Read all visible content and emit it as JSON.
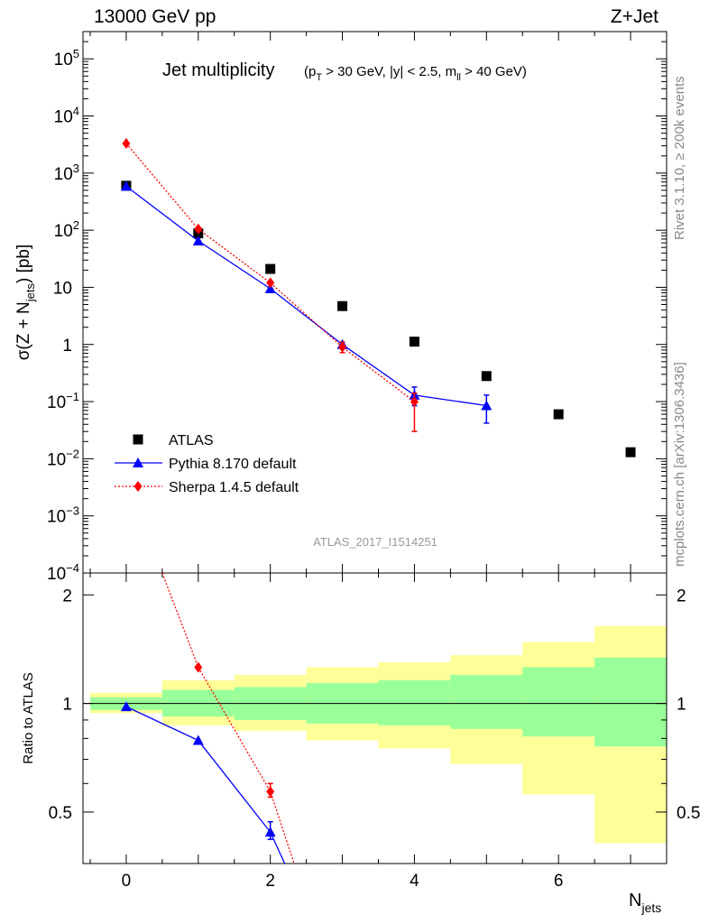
{
  "header": {
    "left": "13000 GeV pp",
    "right": "Z+Jet"
  },
  "sidebar": {
    "rivet": "Rivet 3.1.10, ≥ 200k events",
    "mcplots": "mcplots.cern.ch [arXiv:1306.3436]"
  },
  "plot": {
    "title_main": "Jet multiplicity",
    "title_cuts": "(p_T > 30 GeV, |y| < 2.5, m_ll > 40 GeV)",
    "watermark": "ATLAS_2017_I1514251",
    "xlabel": "N_jets",
    "ylabel_top": "σ(Z + N_jets) [pb]",
    "ylabel_bottom": "Ratio to ATLAS"
  },
  "legend": [
    {
      "label": "ATLAS",
      "color": "#000000",
      "marker": "square"
    },
    {
      "label": "Pythia 8.170 default",
      "color": "#0000ff",
      "marker": "triangle"
    },
    {
      "label": "Sherpa 1.4.5 default",
      "color": "#ff0000",
      "marker": "diamond"
    }
  ],
  "chart_data": [
    {
      "type": "scatter",
      "panel": "main",
      "x": [
        0,
        1,
        2,
        3,
        4,
        5,
        6,
        7
      ],
      "series": [
        {
          "name": "ATLAS",
          "color": "#000000",
          "marker": "square",
          "values": [
            600,
            88,
            21,
            4.7,
            1.12,
            0.28,
            0.06,
            0.013
          ]
        },
        {
          "name": "Pythia 8.170 default",
          "color": "#0000ff",
          "marker": "triangle",
          "line": "solid",
          "values": [
            590,
            65,
            9.5,
            1.0,
            0.13,
            0.085
          ],
          "err_low": [
            null,
            null,
            null,
            null,
            0.085,
            0.042
          ],
          "err_high": [
            null,
            null,
            null,
            null,
            0.18,
            0.13
          ]
        },
        {
          "name": "Sherpa 1.4.5 default",
          "color": "#ff0000",
          "marker": "diamond",
          "line": "dotted",
          "values": [
            3300,
            105,
            12,
            0.9,
            0.1
          ],
          "err_low": [
            null,
            null,
            null,
            0.72,
            0.03
          ],
          "err_high": [
            null,
            null,
            null,
            1.1,
            0.14
          ]
        }
      ],
      "xlim": [
        -0.6,
        7.5
      ],
      "ylim": [
        0.0001,
        300000
      ],
      "yscale": "log",
      "y_ticks": [
        {
          "v": 100000,
          "base": "10",
          "exp": "5"
        },
        {
          "v": 10000,
          "base": "10",
          "exp": "4"
        },
        {
          "v": 1000,
          "base": "10",
          "exp": "3"
        },
        {
          "v": 100,
          "base": "10",
          "exp": "2"
        },
        {
          "v": 10,
          "base": "10",
          "exp": ""
        },
        {
          "v": 1,
          "base": "1",
          "exp": ""
        },
        {
          "v": 0.1,
          "base": "10",
          "exp": "−1"
        },
        {
          "v": 0.01,
          "base": "10",
          "exp": "−2"
        },
        {
          "v": 0.001,
          "base": "10",
          "exp": "−3"
        },
        {
          "v": 0.0001,
          "base": "10",
          "exp": "−4"
        }
      ]
    },
    {
      "type": "line",
      "panel": "ratio",
      "x_ticks": [
        0,
        2,
        4,
        6
      ],
      "y_ticks": [
        0.5,
        1,
        2
      ],
      "ylim": [
        0.36,
        2.3
      ],
      "yscale": "log",
      "bin_edges": [
        -0.5,
        0.5,
        1.5,
        2.5,
        3.5,
        4.5,
        5.5,
        6.5,
        7.5
      ],
      "band_yellow": [
        [
          0.94,
          1.07
        ],
        [
          0.87,
          1.16
        ],
        [
          0.84,
          1.2
        ],
        [
          0.79,
          1.26
        ],
        [
          0.75,
          1.3
        ],
        [
          0.68,
          1.36
        ],
        [
          0.56,
          1.48
        ],
        [
          0.41,
          1.64
        ]
      ],
      "band_green": [
        [
          0.96,
          1.04
        ],
        [
          0.92,
          1.09
        ],
        [
          0.9,
          1.11
        ],
        [
          0.88,
          1.14
        ],
        [
          0.87,
          1.16
        ],
        [
          0.85,
          1.2
        ],
        [
          0.81,
          1.26
        ],
        [
          0.76,
          1.34
        ]
      ],
      "series": [
        {
          "name": "Pythia 8.170 default",
          "color": "#0000ff",
          "line": "solid",
          "x": [
            0,
            1,
            2,
            2.2
          ],
          "values": [
            0.98,
            0.79,
            0.44,
            0.36
          ],
          "markers": [
            true,
            true,
            true,
            false
          ],
          "err": [
            null,
            null,
            [
              0.42,
              0.47
            ]
          ]
        },
        {
          "name": "Sherpa 1.4.5 default",
          "color": "#ff0000",
          "line": "dotted",
          "x": [
            0.5,
            1,
            2,
            2.33
          ],
          "values": [
            2.3,
            1.26,
            0.57,
            0.36
          ],
          "markers": [
            false,
            true,
            true,
            false
          ],
          "err": [
            null,
            null,
            [
              0.55,
              0.6
            ]
          ]
        }
      ]
    }
  ]
}
